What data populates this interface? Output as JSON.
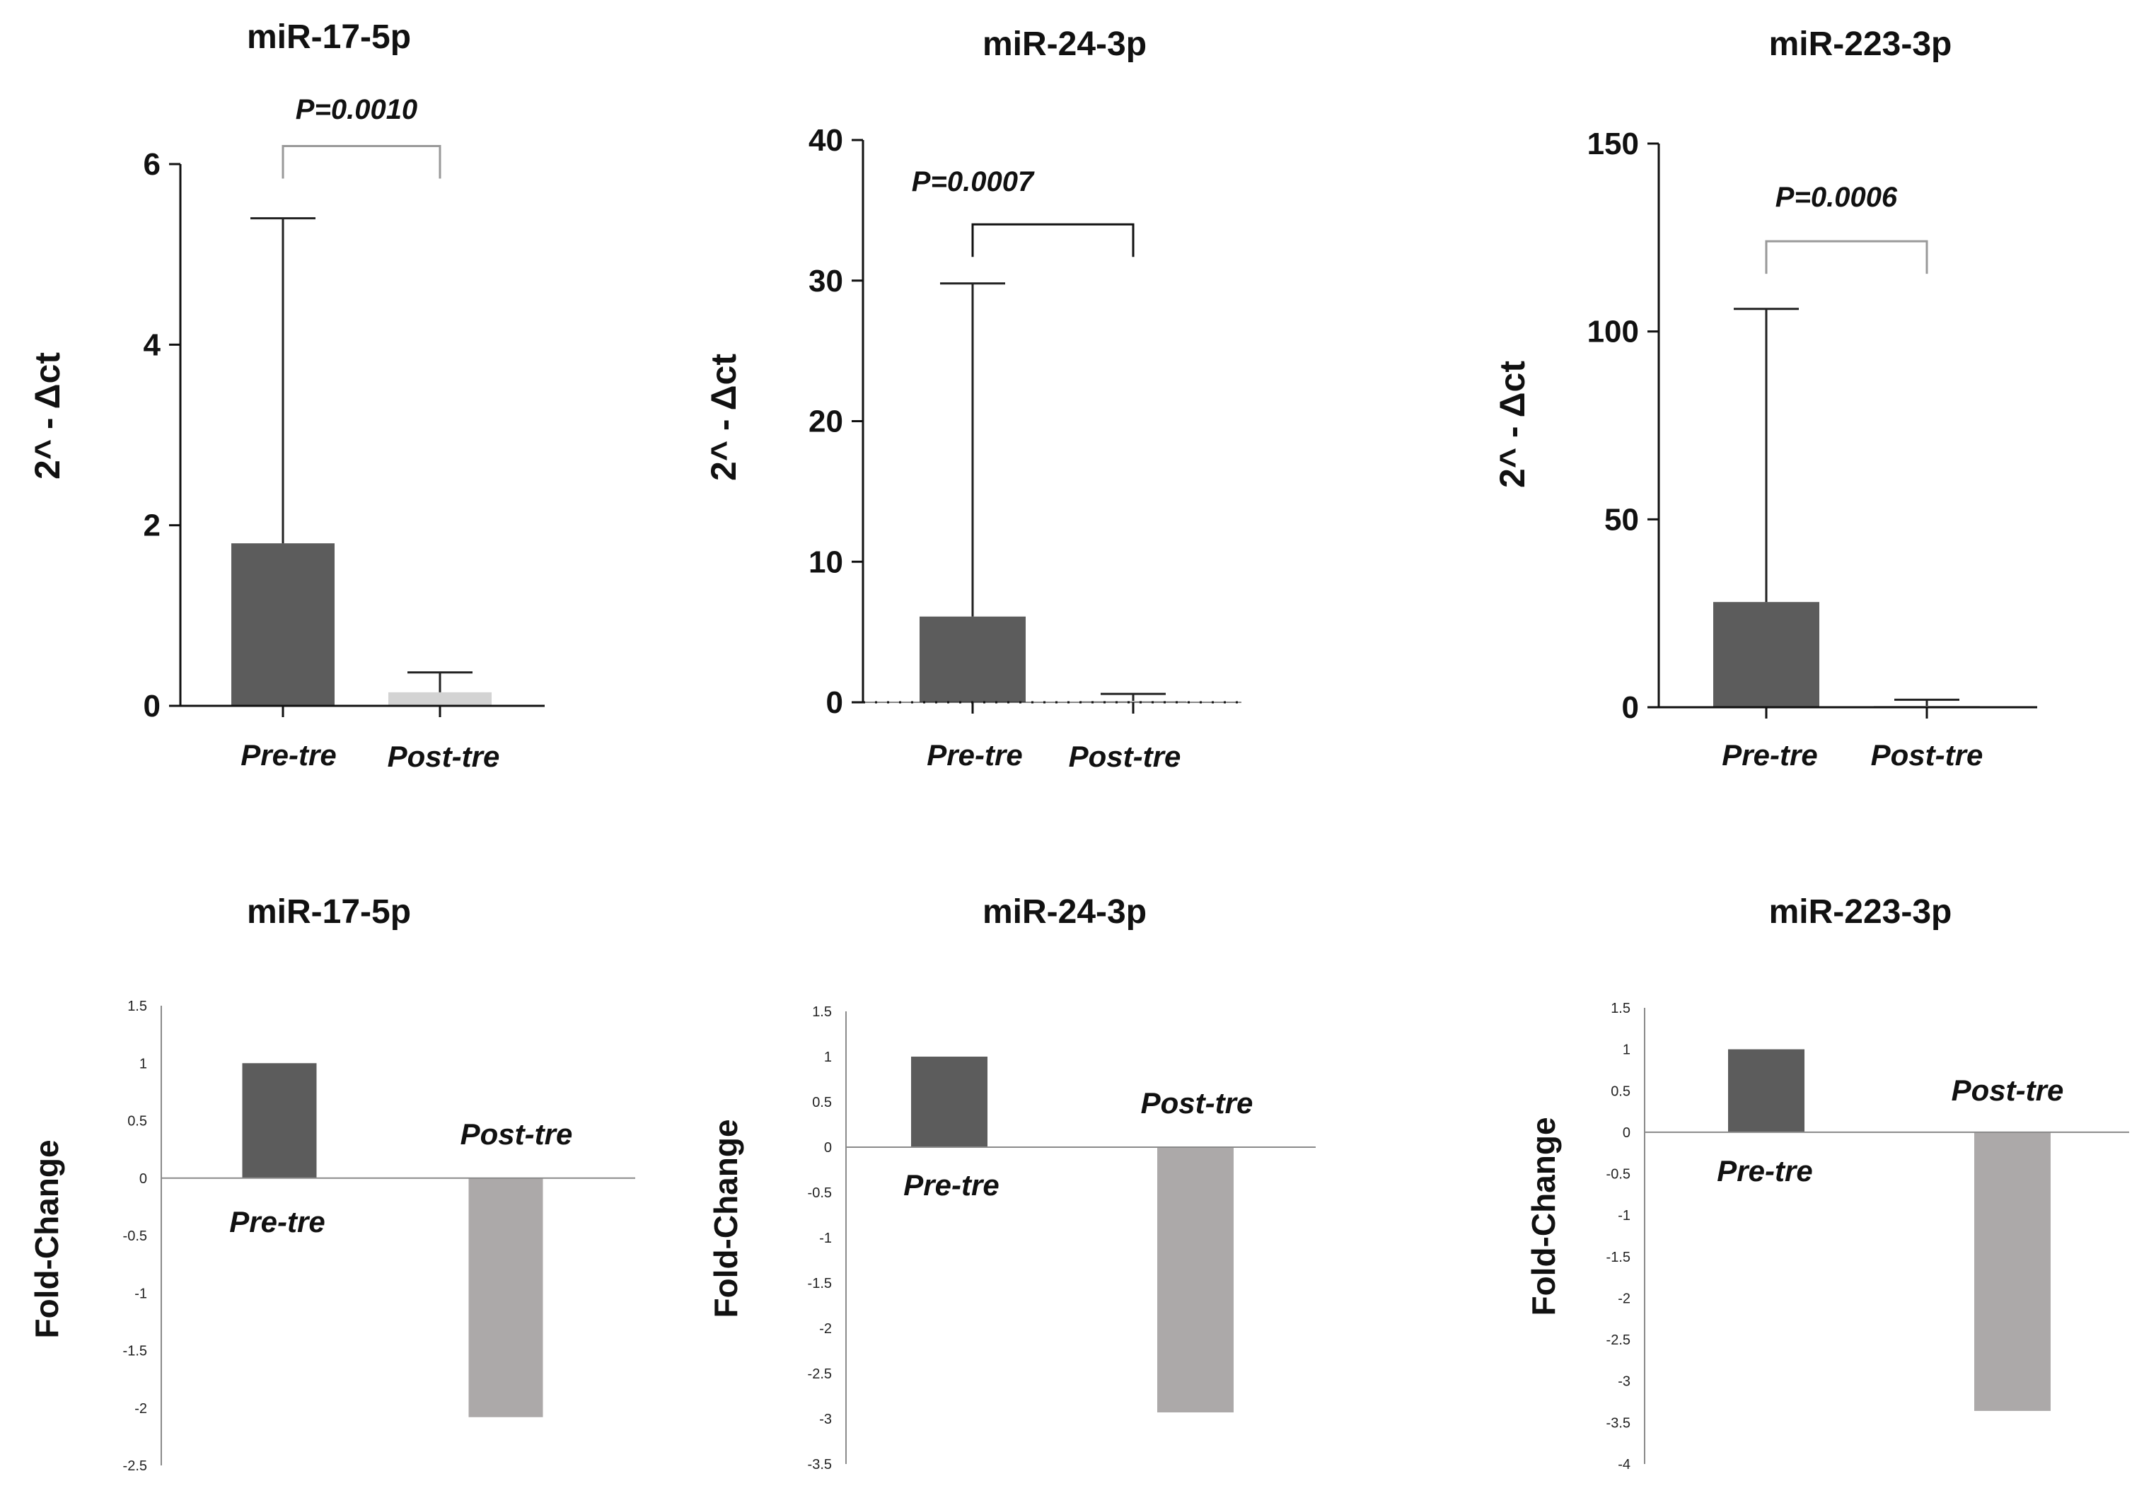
{
  "colors": {
    "pre_bar": "#5c5c5c",
    "post_bar_top": "#d3d3d3",
    "post_bar_bottom": "#aca9a9",
    "axis": "#111111",
    "axis_light": "#8a8a8a",
    "bracket_light": "#999999",
    "bracket_dark": "#111111"
  },
  "chart_data": [
    {
      "type": "bar",
      "title": "miR-17-5p",
      "ylabel": "2^ - Δct",
      "categories": [
        "Pre-tre",
        "Post-tre"
      ],
      "values": [
        1.8,
        0.15
      ],
      "error_upper": [
        5.4,
        0.37
      ],
      "ylim": [
        0,
        6
      ],
      "yticks": [
        0,
        2,
        4,
        6
      ],
      "ytick_labels": [
        "0",
        "2",
        "4",
        "6"
      ],
      "pvalue": "P=0.0010",
      "bracket_y": 6.2
    },
    {
      "type": "bar",
      "title": "miR-24-3p",
      "ylabel": "2^ - Δct",
      "categories": [
        "Pre-tre",
        "Post-tre"
      ],
      "values": [
        6.1,
        0.1
      ],
      "error_upper": [
        29.8,
        0.6
      ],
      "ylim": [
        0,
        40
      ],
      "yticks": [
        0,
        10,
        20,
        30,
        40
      ],
      "ytick_labels": [
        "0",
        "10",
        "20",
        "30",
        "40"
      ],
      "pvalue": "P=0.0007",
      "bracket_y": 34.0
    },
    {
      "type": "bar",
      "title": "miR-223-3p",
      "ylabel": "2^ - Δct",
      "categories": [
        "Pre-tre",
        "Post-tre"
      ],
      "values": [
        28.0,
        0.3
      ],
      "error_upper": [
        106.0,
        2.0
      ],
      "ylim": [
        0,
        150
      ],
      "yticks": [
        0,
        50,
        100,
        150
      ],
      "ytick_labels": [
        "0",
        "50",
        "100",
        "150"
      ],
      "pvalue": "P=0.0006",
      "bracket_y": 124.0
    },
    {
      "type": "bar",
      "title": "miR-17-5p",
      "ylabel": "Fold-Change",
      "categories": [
        "Pre-tre",
        "Post-tre"
      ],
      "values": [
        1.0,
        -2.08
      ],
      "ylim": [
        -2.5,
        1.5
      ],
      "yticks": [
        1.5,
        1,
        0.5,
        0,
        -0.5,
        -1,
        -1.5,
        -2,
        -2.5
      ],
      "ytick_labels": [
        "1.5",
        "1",
        "0.5",
        "0",
        "-0.5",
        "-1",
        "-1.5",
        "-2",
        "-2.5"
      ]
    },
    {
      "type": "bar",
      "title": "miR-24-3p",
      "ylabel": "Fold-Change",
      "categories": [
        "Pre-tre",
        "Post-tre"
      ],
      "values": [
        1.0,
        -2.93
      ],
      "ylim": [
        -3.5,
        1.5
      ],
      "yticks": [
        1.5,
        1,
        0.5,
        0,
        -0.5,
        -1,
        -1.5,
        -2,
        -2.5,
        -3,
        -3.5
      ],
      "ytick_labels": [
        "1.5",
        "1",
        "0.5",
        "0",
        "-0.5",
        "-1",
        "-1.5",
        "-2",
        "-2.5",
        "-3",
        "-3.5"
      ]
    },
    {
      "type": "bar",
      "title": "miR-223-3p",
      "ylabel": "Fold-Change",
      "categories": [
        "Pre-tre",
        "Post-tre"
      ],
      "values": [
        1.0,
        -3.36
      ],
      "ylim": [
        -4,
        1.5
      ],
      "yticks": [
        1.5,
        1,
        0.5,
        0,
        -0.5,
        -1,
        -1.5,
        -2,
        -2.5,
        -3,
        -3.5,
        -4
      ],
      "ytick_labels": [
        "1.5",
        "1",
        "0.5",
        "0",
        "-0.5",
        "-1",
        "-1.5",
        "-2",
        "-2.5",
        "-3",
        "-3.5",
        "-4"
      ]
    }
  ]
}
